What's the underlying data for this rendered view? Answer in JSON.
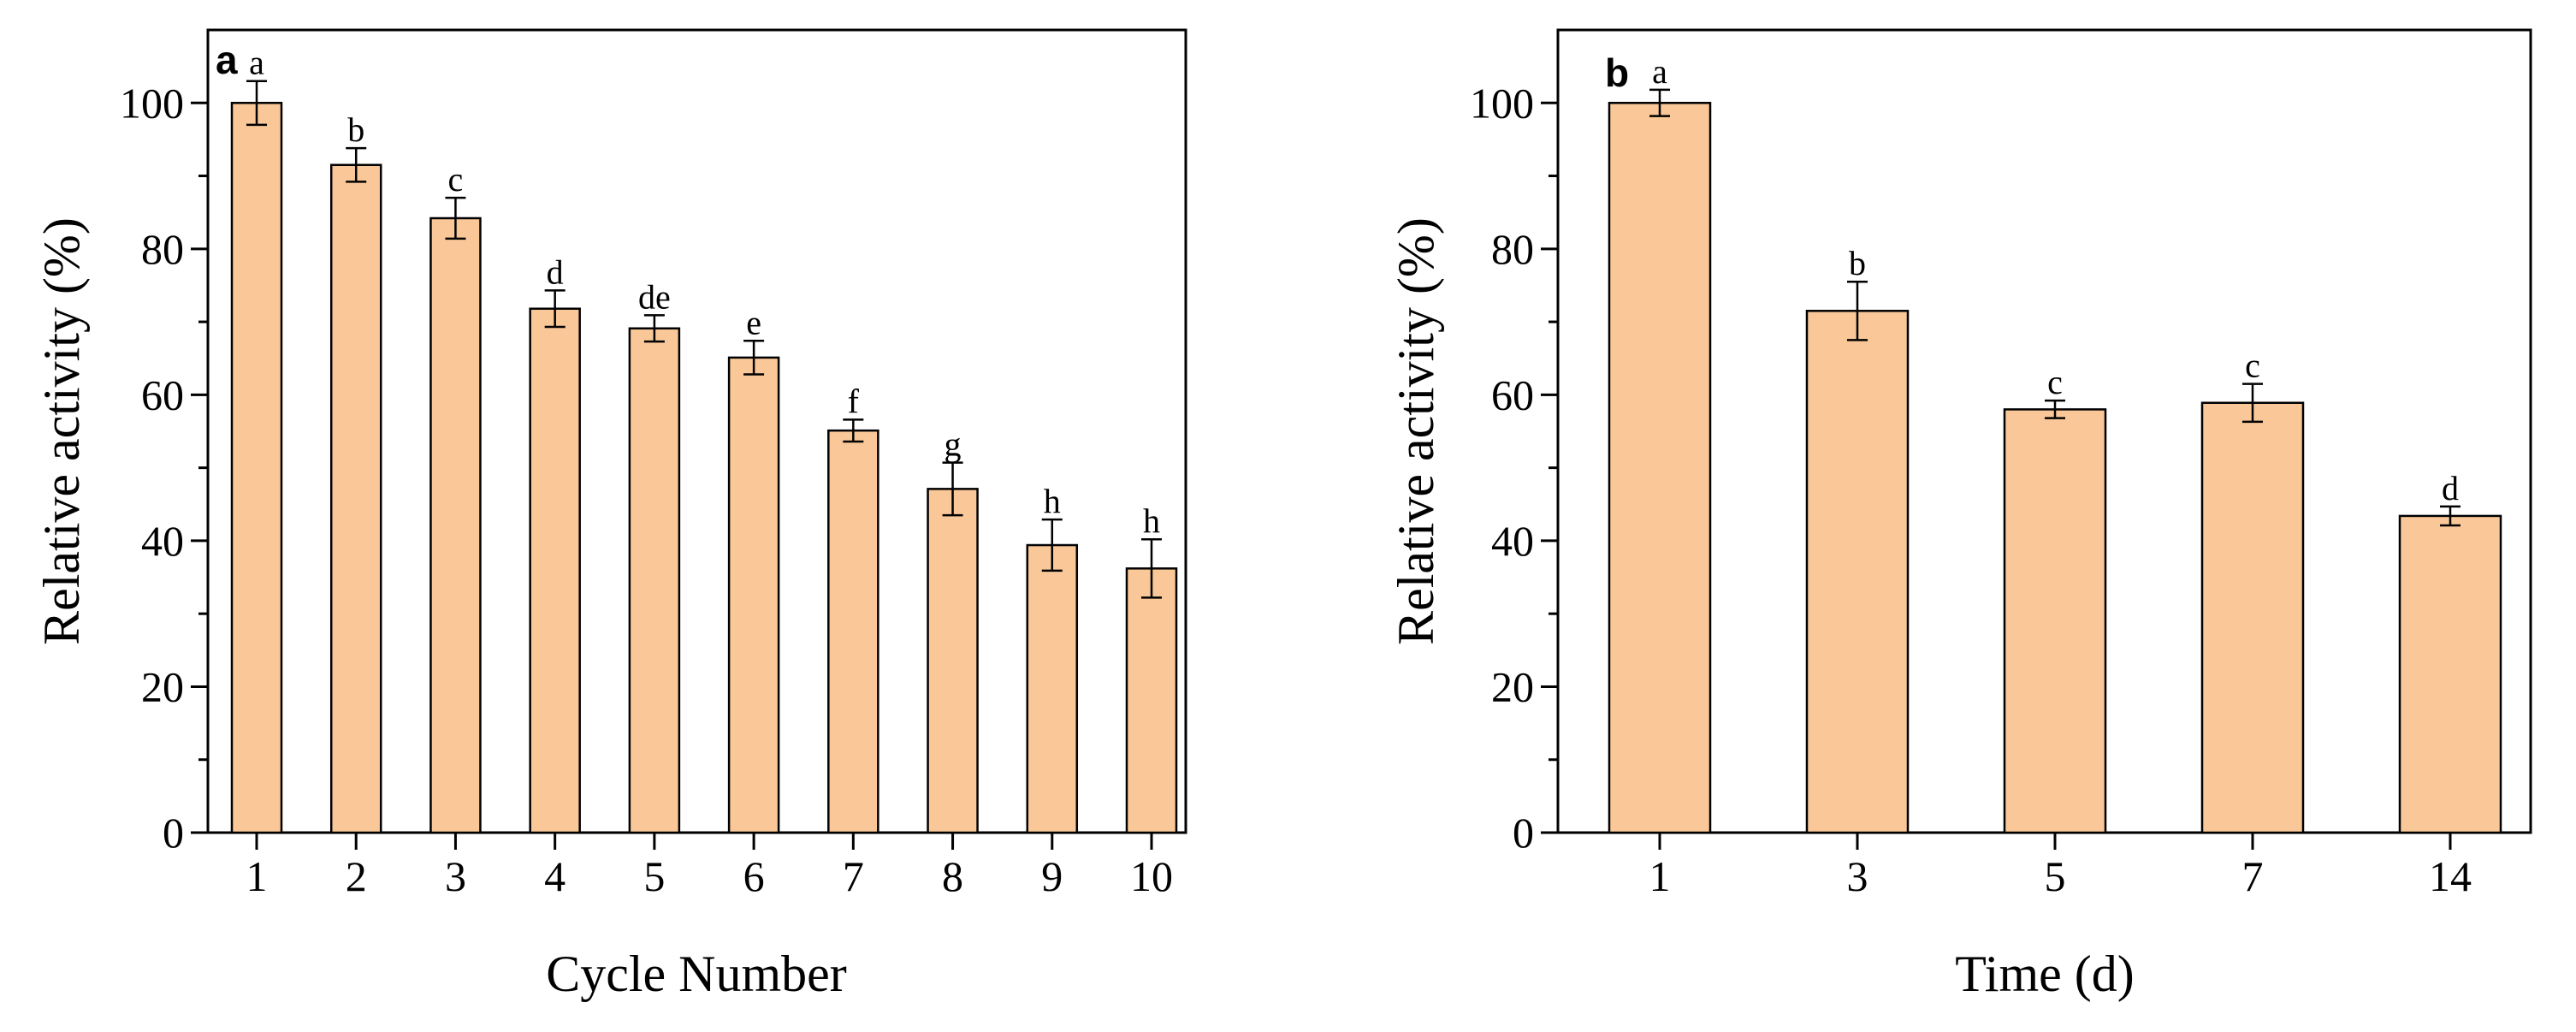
{
  "chart_data": [
    {
      "type": "bar",
      "panel_label": "a",
      "categories": [
        "1",
        "2",
        "3",
        "4",
        "5",
        "6",
        "7",
        "8",
        "9",
        "10"
      ],
      "values": [
        100,
        91.5,
        84.2,
        71.8,
        69.1,
        65.1,
        55.1,
        47.1,
        39.4,
        36.2
      ],
      "errors": [
        3.0,
        2.3,
        2.8,
        2.5,
        1.8,
        2.3,
        1.5,
        3.6,
        3.5,
        4.0
      ],
      "significance_letters": [
        "a",
        "b",
        "c",
        "d",
        "de",
        "e",
        "f",
        "g",
        "h",
        "h"
      ],
      "xlabel": "Cycle Number",
      "ylabel": "Relative activity (%)",
      "ylim": [
        0,
        110
      ],
      "yticks": [
        "0",
        "20",
        "40",
        "60",
        "80",
        "100"
      ],
      "bar_color": "#FAC898"
    },
    {
      "type": "bar",
      "panel_label": "b",
      "categories": [
        "1",
        "3",
        "5",
        "7",
        "14"
      ],
      "values": [
        100,
        71.5,
        58.0,
        58.9,
        43.4
      ],
      "errors": [
        1.8,
        4.0,
        1.2,
        2.6,
        1.3
      ],
      "significance_letters": [
        "a",
        "b",
        "c",
        "c",
        "d"
      ],
      "xlabel": "Time (d)",
      "ylabel": "Relative activity (%)",
      "ylim": [
        0,
        110
      ],
      "yticks": [
        "0",
        "20",
        "40",
        "60",
        "80",
        "100"
      ],
      "bar_color": "#FAC898"
    }
  ]
}
